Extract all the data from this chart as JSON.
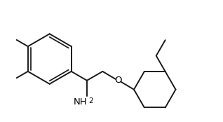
{
  "bg_color": "#ffffff",
  "line_color": "#1a1a1a",
  "line_width": 1.4,
  "text_color": "#000000",
  "font_size": 9.5,
  "font_size_sub": 7.5
}
